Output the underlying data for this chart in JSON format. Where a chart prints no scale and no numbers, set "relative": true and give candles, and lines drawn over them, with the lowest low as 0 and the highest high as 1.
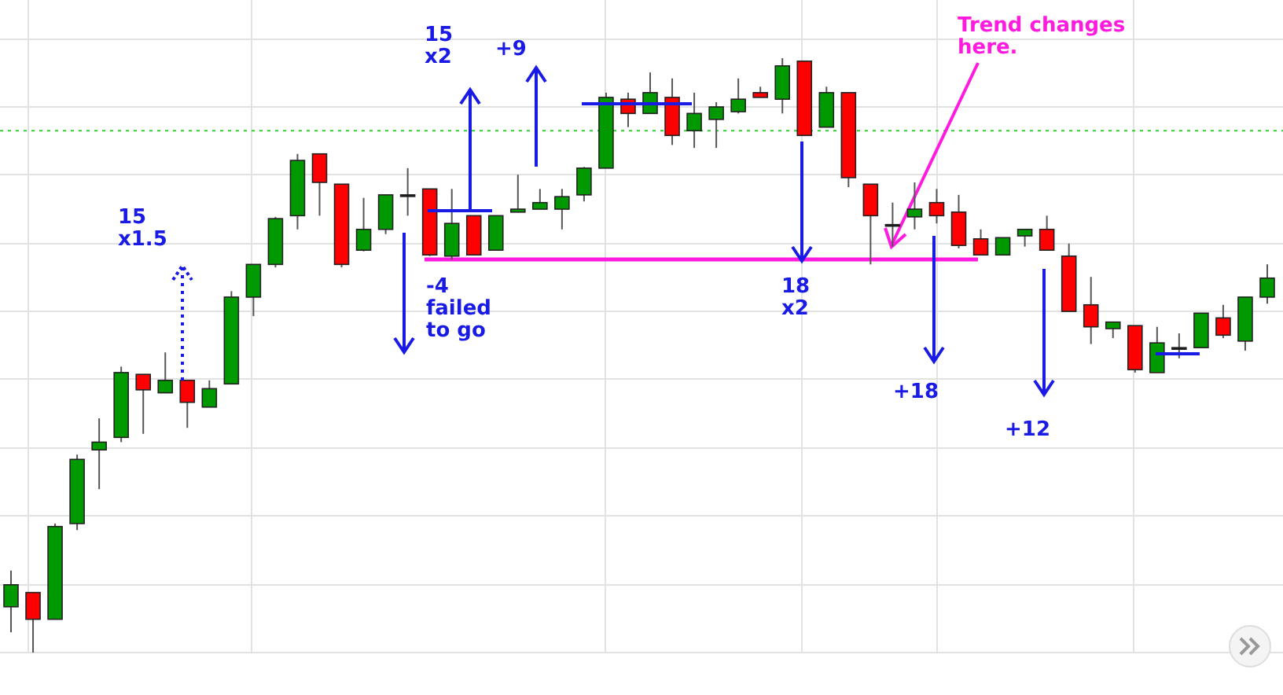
{
  "chart_data": {
    "type": "candlestick",
    "relative": true,
    "grid": true,
    "categories": [
      null,
      null,
      null,
      null,
      null,
      null,
      null,
      null,
      null,
      null,
      null,
      null,
      null,
      null,
      null,
      null,
      null,
      null,
      null,
      null,
      null,
      null,
      null,
      null,
      null,
      null,
      null,
      null,
      null,
      null,
      null,
      null,
      null,
      null,
      null,
      null,
      null,
      null,
      null,
      null,
      null,
      null,
      null,
      null,
      null,
      null,
      null,
      null,
      null,
      null,
      null,
      null,
      null,
      null,
      null,
      null,
      null,
      null
    ],
    "ohlc": [
      [
        0.077,
        0.138,
        0.034,
        0.114
      ],
      [
        0.101,
        0.101,
        0,
        0.056
      ],
      [
        0.056,
        0.217,
        0.056,
        0.212
      ],
      [
        0.217,
        0.333,
        0.206,
        0.325
      ],
      [
        0.341,
        0.394,
        0.275,
        0.354
      ],
      [
        0.362,
        0.481,
        0.354,
        0.471
      ],
      [
        0.468,
        0.468,
        0.368,
        0.442
      ],
      [
        0.437,
        0.505,
        0.437,
        0.458
      ],
      [
        0.458,
        0.458,
        0.378,
        0.421
      ],
      [
        0.413,
        0.458,
        0.413,
        0.444
      ],
      [
        0.452,
        0.608,
        0.452,
        0.598
      ],
      [
        0.598,
        0.653,
        0.566,
        0.653
      ],
      [
        0.653,
        0.733,
        0.648,
        0.73
      ],
      [
        0.735,
        0.839,
        0.712,
        0.828
      ],
      [
        0.839,
        0.839,
        0.735,
        0.791
      ],
      [
        0.788,
        0.788,
        0.648,
        0.653
      ],
      [
        0.677,
        0.765,
        0.675,
        0.712
      ],
      [
        0.712,
        0.77,
        0.704,
        0.77
      ],
      [
        0.77,
        0.815,
        0.735,
        0.77
      ],
      [
        0.78,
        0.78,
        0.667,
        0.669
      ],
      [
        0.667,
        0.78,
        0.661,
        0.722
      ],
      [
        0.735,
        0.735,
        0.669,
        0.669
      ],
      [
        0.677,
        0.735,
        0.677,
        0.735
      ],
      [
        0.741,
        0.804,
        0.741,
        0.746
      ],
      [
        0.746,
        0.78,
        0.746,
        0.757
      ],
      [
        0.746,
        0.78,
        0.712,
        0.767
      ],
      [
        0.77,
        0.817,
        0.759,
        0.815
      ],
      [
        0.815,
        0.942,
        0.815,
        0.934
      ],
      [
        0.931,
        0.942,
        0.884,
        0.907
      ],
      [
        0.907,
        0.976,
        0.907,
        0.942
      ],
      [
        0.934,
        0.966,
        0.854,
        0.87
      ],
      [
        0.878,
        0.942,
        0.849,
        0.907
      ],
      [
        0.897,
        0.926,
        0.849,
        0.918
      ],
      [
        0.91,
        0.966,
        0.907,
        0.931
      ],
      [
        0.942,
        0.952,
        0.934,
        0.934
      ],
      [
        0.931,
        1,
        0.907,
        0.987
      ],
      [
        0.995,
        0.995,
        0.87,
        0.87
      ],
      [
        0.884,
        0.952,
        0.884,
        0.942
      ],
      [
        0.942,
        0.942,
        0.783,
        0.799
      ],
      [
        0.788,
        0.788,
        0.653,
        0.735
      ],
      [
        0.72,
        0.757,
        0.683,
        0.72
      ],
      [
        0.733,
        0.791,
        0.712,
        0.746
      ],
      [
        0.757,
        0.78,
        0.722,
        0.735
      ],
      [
        0.741,
        0.77,
        0.68,
        0.685
      ],
      [
        0.696,
        0.712,
        0.669,
        0.669
      ],
      [
        0.669,
        0.698,
        0.669,
        0.698
      ],
      [
        0.701,
        0.712,
        0.683,
        0.712
      ],
      [
        0.712,
        0.735,
        0.677,
        0.677
      ],
      [
        0.667,
        0.688,
        0.574,
        0.574
      ],
      [
        0.585,
        0.632,
        0.519,
        0.548
      ],
      [
        0.545,
        0.556,
        0.529,
        0.556
      ],
      [
        0.55,
        0.55,
        0.471,
        0.476
      ],
      [
        0.471,
        0.548,
        0.471,
        0.521
      ],
      [
        0.513,
        0.537,
        0.495,
        0.513
      ],
      [
        0.513,
        0.571,
        0.513,
        0.571
      ],
      [
        0.563,
        0.585,
        0.529,
        0.534
      ],
      [
        0.524,
        0.598,
        0.508,
        0.598
      ],
      [
        0.598,
        0.653,
        0.587,
        0.63
      ]
    ],
    "colors": [
      "#009900",
      "#ff0000",
      "#009900",
      "#009900",
      "#009900",
      "#009900",
      "#ff0000",
      "#009900",
      "#ff0000",
      "#009900",
      "#009900",
      "#009900",
      "#009900",
      "#009900",
      "#ff0000",
      "#ff0000",
      "#009900",
      "#009900",
      "#000000",
      "#ff0000",
      "#009900",
      "#ff0000",
      "#009900",
      "#009900",
      "#009900",
      "#009900",
      "#009900",
      "#009900",
      "#ff0000",
      "#009900",
      "#ff0000",
      "#009900",
      "#009900",
      "#009900",
      "#ff0000",
      "#009900",
      "#ff0000",
      "#009900",
      "#ff0000",
      "#ff0000",
      "#000000",
      "#009900",
      "#ff0000",
      "#ff0000",
      "#ff0000",
      "#009900",
      "#009900",
      "#ff0000",
      "#ff0000",
      "#ff0000",
      "#009900",
      "#ff0000",
      "#009900",
      "#000000",
      "#009900",
      "#ff0000",
      "#009900",
      "#009900"
    ],
    "ref_lines": [
      {
        "axis": "y",
        "value": 0.878,
        "color": "#33cc33",
        "line_style": "dotted"
      }
    ],
    "annotations": [
      "15\nx1.5",
      "15\nx2",
      "+9",
      "-4\nfailed\nto go",
      "18\nx2",
      "+18",
      "+12",
      "Trend changes\nhere."
    ]
  }
}
